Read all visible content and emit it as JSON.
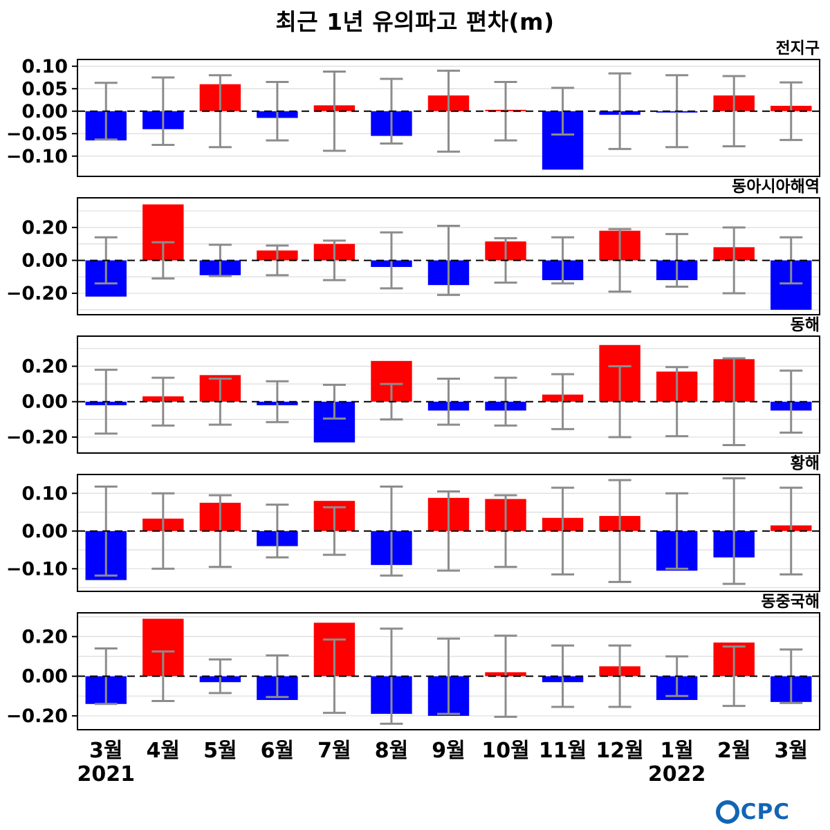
{
  "title": "최근 1년 유의파고 편차(m)",
  "colors": {
    "positive": "#ff0000",
    "negative": "#0000ff",
    "error_bar": "#8c8c8c",
    "grid": "#dcdcdc",
    "zero_line": "#000000",
    "logo_blue": "#1265b5"
  },
  "x_categories": [
    "3월",
    "4월",
    "5월",
    "6월",
    "7월",
    "8월",
    "9월",
    "10월",
    "11월",
    "12월",
    "1월",
    "2월",
    "3월"
  ],
  "years": [
    {
      "label": "2021",
      "slot": 0
    },
    {
      "label": "2022",
      "slot": 10
    }
  ],
  "logo": {
    "text": "CPC"
  },
  "chart_data": [
    {
      "type": "bar",
      "region": "전지구",
      "ylim": [
        -0.145,
        0.115
      ],
      "yticks": [
        0.1,
        0.05,
        0.0,
        -0.05,
        -0.1
      ],
      "grid_step": 0.05,
      "categories": [
        "3월",
        "4월",
        "5월",
        "6월",
        "7월",
        "8월",
        "9월",
        "10월",
        "11월",
        "12월",
        "1월",
        "2월",
        "3월"
      ],
      "values": [
        -0.065,
        -0.04,
        0.06,
        -0.015,
        0.013,
        -0.055,
        0.035,
        0.003,
        -0.13,
        -0.008,
        -0.003,
        0.035,
        0.012
      ],
      "err": [
        0.063,
        0.075,
        0.08,
        0.065,
        0.088,
        0.072,
        0.09,
        0.065,
        0.052,
        0.084,
        0.08,
        0.078,
        0.064
      ]
    },
    {
      "type": "bar",
      "region": "동아시아해역",
      "ylim": [
        -0.33,
        0.38
      ],
      "yticks": [
        0.2,
        0.0,
        -0.2
      ],
      "grid_step": 0.1,
      "categories": [
        "3월",
        "4월",
        "5월",
        "6월",
        "7월",
        "8월",
        "9월",
        "10월",
        "11월",
        "12월",
        "1월",
        "2월",
        "3월"
      ],
      "values": [
        -0.22,
        0.34,
        -0.09,
        0.06,
        0.1,
        -0.04,
        -0.15,
        0.115,
        -0.12,
        0.18,
        -0.12,
        0.08,
        -0.3
      ],
      "err": [
        0.14,
        0.11,
        0.095,
        0.09,
        0.12,
        0.17,
        0.21,
        0.135,
        0.14,
        0.19,
        0.16,
        0.2,
        0.14
      ]
    },
    {
      "type": "bar",
      "region": "동해",
      "ylim": [
        -0.29,
        0.37
      ],
      "yticks": [
        0.2,
        0.0,
        -0.2
      ],
      "grid_step": 0.1,
      "categories": [
        "3월",
        "4월",
        "5월",
        "6월",
        "7월",
        "8월",
        "9월",
        "10월",
        "11월",
        "12월",
        "1월",
        "2월",
        "3월"
      ],
      "values": [
        -0.02,
        0.03,
        0.15,
        -0.02,
        -0.23,
        0.23,
        -0.05,
        -0.05,
        0.04,
        0.32,
        0.17,
        0.24,
        -0.05
      ],
      "err": [
        0.18,
        0.135,
        0.13,
        0.115,
        0.095,
        0.1,
        0.13,
        0.135,
        0.155,
        0.2,
        0.195,
        0.245,
        0.175
      ]
    },
    {
      "type": "bar",
      "region": "황해",
      "ylim": [
        -0.16,
        0.15
      ],
      "yticks": [
        0.1,
        0.0,
        -0.1
      ],
      "grid_step": 0.05,
      "categories": [
        "3월",
        "4월",
        "5월",
        "6월",
        "7월",
        "8월",
        "9월",
        "10월",
        "11월",
        "12월",
        "1월",
        "2월",
        "3월"
      ],
      "values": [
        -0.13,
        0.033,
        0.075,
        -0.04,
        0.08,
        -0.09,
        0.088,
        0.085,
        0.035,
        0.04,
        -0.105,
        -0.07,
        0.015
      ],
      "err": [
        0.118,
        0.1,
        0.095,
        0.07,
        0.063,
        0.118,
        0.105,
        0.095,
        0.115,
        0.135,
        0.1,
        0.14,
        0.115
      ]
    },
    {
      "type": "bar",
      "region": "동중국해",
      "ylim": [
        -0.27,
        0.32
      ],
      "yticks": [
        0.2,
        0.0,
        -0.2
      ],
      "grid_step": 0.1,
      "categories": [
        "3월",
        "4월",
        "5월",
        "6월",
        "7월",
        "8월",
        "9월",
        "10월",
        "11월",
        "12월",
        "1월",
        "2월",
        "3월"
      ],
      "values": [
        -0.14,
        0.29,
        -0.03,
        -0.12,
        0.27,
        -0.19,
        -0.2,
        0.02,
        -0.03,
        0.05,
        -0.12,
        0.17,
        -0.13
      ],
      "err": [
        0.14,
        0.125,
        0.085,
        0.105,
        0.185,
        0.24,
        0.19,
        0.205,
        0.155,
        0.155,
        0.1,
        0.15,
        0.135
      ]
    }
  ]
}
